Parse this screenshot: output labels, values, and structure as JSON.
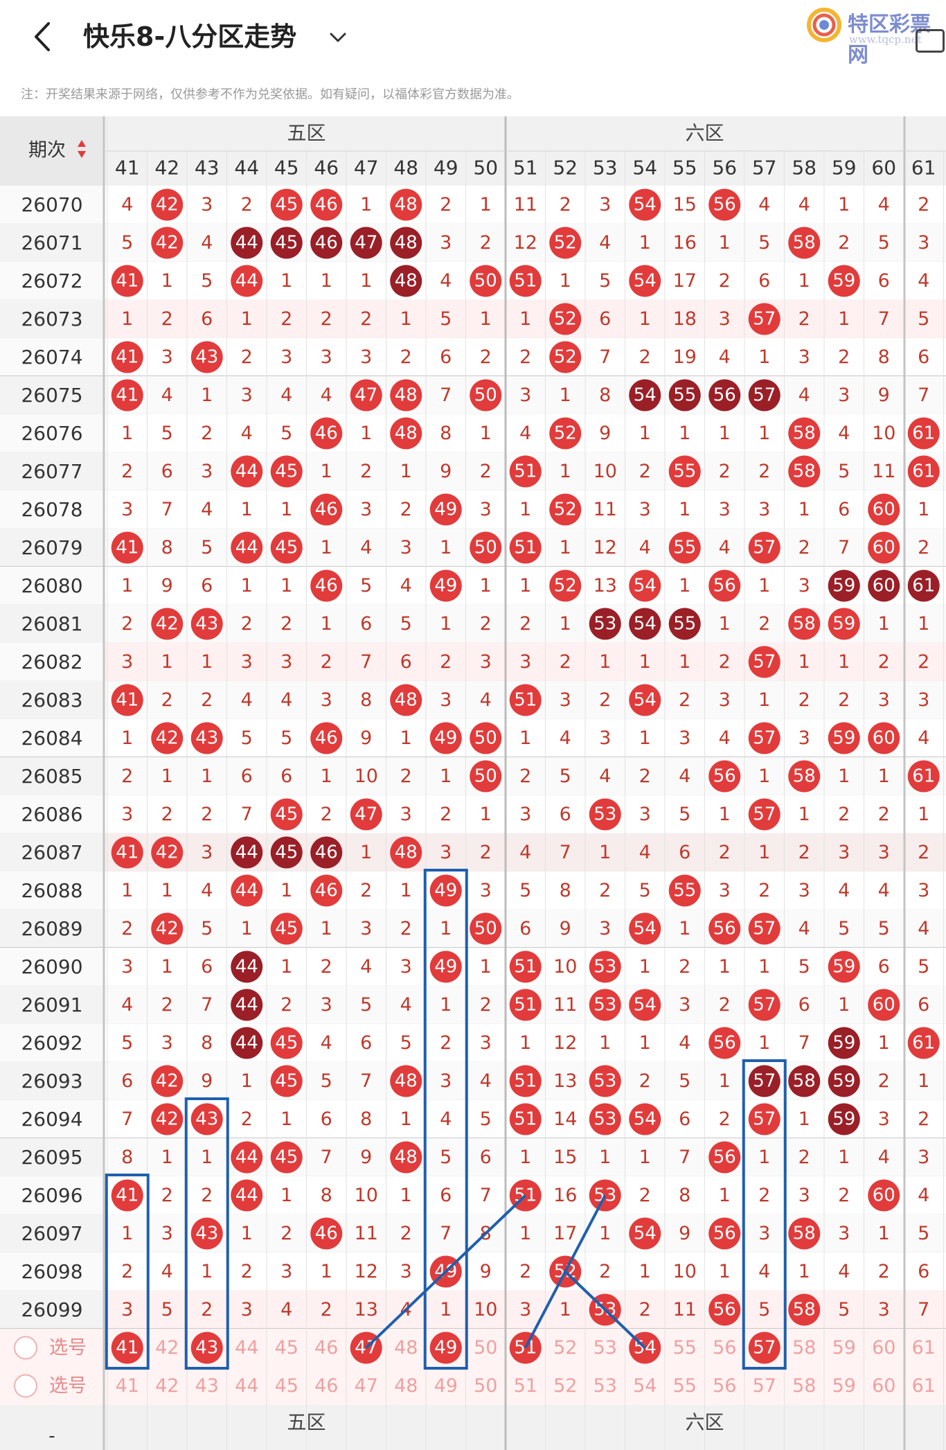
{
  "header": {
    "title": "快乐8-八分区走势",
    "brand": "特区彩票网",
    "brand_url": "www.tqcp.net"
  },
  "note": "注：开奖结果来源于网络，仅供参考不作为兑奖依据。如有疑问，以福体彩官方数据为准。",
  "table": {
    "period_header": "期次",
    "zones": [
      "五区",
      "六区"
    ],
    "columns": [
      41,
      42,
      43,
      44,
      45,
      46,
      47,
      48,
      49,
      50,
      51,
      52,
      53,
      54,
      55,
      56,
      57,
      58,
      59,
      60,
      61
    ],
    "select_label": "选号",
    "rows": [
      {
        "period": "26070",
        "v": [
          4,
          42,
          3,
          2,
          45,
          46,
          1,
          48,
          2,
          1,
          11,
          2,
          3,
          54,
          15,
          56,
          4,
          4,
          1,
          4,
          2
        ]
      },
      {
        "period": "26071",
        "v": [
          5,
          42,
          4,
          44,
          45,
          46,
          47,
          48,
          3,
          2,
          12,
          52,
          4,
          1,
          16,
          1,
          5,
          58,
          2,
          5,
          3
        ]
      },
      {
        "period": "26072",
        "v": [
          41,
          1,
          5,
          44,
          1,
          1,
          1,
          48,
          4,
          50,
          51,
          1,
          5,
          54,
          17,
          2,
          6,
          1,
          59,
          6,
          4
        ]
      },
      {
        "period": "26073",
        "v": [
          1,
          2,
          6,
          1,
          2,
          2,
          2,
          1,
          5,
          1,
          1,
          52,
          6,
          1,
          18,
          3,
          57,
          2,
          1,
          7,
          5
        ]
      },
      {
        "period": "26074",
        "v": [
          41,
          3,
          43,
          2,
          3,
          3,
          3,
          2,
          6,
          2,
          2,
          52,
          7,
          2,
          19,
          4,
          1,
          3,
          2,
          8,
          6
        ]
      },
      {
        "period": "26075",
        "v": [
          41,
          4,
          1,
          3,
          4,
          4,
          47,
          48,
          7,
          50,
          3,
          1,
          8,
          54,
          55,
          56,
          57,
          4,
          3,
          9,
          7
        ]
      },
      {
        "period": "26076",
        "v": [
          1,
          5,
          2,
          4,
          5,
          46,
          1,
          48,
          8,
          1,
          4,
          52,
          9,
          1,
          1,
          1,
          1,
          58,
          4,
          10,
          61
        ]
      },
      {
        "period": "26077",
        "v": [
          2,
          6,
          3,
          44,
          45,
          1,
          2,
          1,
          9,
          2,
          51,
          1,
          10,
          2,
          55,
          2,
          2,
          58,
          5,
          11,
          61
        ]
      },
      {
        "period": "26078",
        "v": [
          3,
          7,
          4,
          1,
          1,
          46,
          3,
          2,
          49,
          3,
          1,
          52,
          11,
          3,
          1,
          3,
          3,
          1,
          6,
          60,
          1
        ]
      },
      {
        "period": "26079",
        "v": [
          41,
          8,
          5,
          44,
          45,
          1,
          4,
          3,
          1,
          50,
          51,
          1,
          12,
          4,
          55,
          4,
          57,
          2,
          7,
          60,
          2
        ]
      },
      {
        "period": "26080",
        "v": [
          1,
          9,
          6,
          1,
          1,
          46,
          5,
          4,
          49,
          1,
          1,
          52,
          13,
          54,
          1,
          56,
          1,
          3,
          59,
          60,
          61
        ]
      },
      {
        "period": "26081",
        "v": [
          2,
          42,
          43,
          2,
          2,
          1,
          6,
          5,
          1,
          2,
          2,
          1,
          53,
          54,
          55,
          1,
          2,
          58,
          59,
          1,
          1
        ]
      },
      {
        "period": "26082",
        "v": [
          3,
          1,
          1,
          3,
          3,
          2,
          7,
          6,
          2,
          3,
          3,
          2,
          1,
          1,
          1,
          2,
          57,
          1,
          1,
          2,
          2
        ]
      },
      {
        "period": "26083",
        "v": [
          41,
          2,
          2,
          4,
          4,
          3,
          8,
          48,
          3,
          4,
          51,
          3,
          2,
          54,
          2,
          3,
          1,
          2,
          2,
          3,
          3
        ]
      },
      {
        "period": "26084",
        "v": [
          1,
          42,
          43,
          5,
          5,
          46,
          9,
          1,
          49,
          50,
          1,
          4,
          3,
          1,
          3,
          4,
          57,
          3,
          59,
          60,
          4
        ]
      },
      {
        "period": "26085",
        "v": [
          2,
          1,
          1,
          6,
          6,
          1,
          10,
          2,
          1,
          50,
          2,
          5,
          4,
          2,
          4,
          56,
          1,
          58,
          1,
          1,
          61
        ]
      },
      {
        "period": "26086",
        "v": [
          3,
          2,
          2,
          7,
          45,
          2,
          47,
          3,
          2,
          1,
          3,
          6,
          53,
          3,
          5,
          1,
          57,
          1,
          2,
          2,
          1
        ]
      },
      {
        "period": "26087",
        "v": [
          41,
          42,
          3,
          44,
          45,
          46,
          1,
          48,
          3,
          2,
          4,
          7,
          1,
          4,
          6,
          2,
          1,
          2,
          3,
          3,
          2
        ]
      },
      {
        "period": "26088",
        "v": [
          1,
          1,
          4,
          44,
          1,
          46,
          2,
          1,
          49,
          3,
          5,
          8,
          2,
          5,
          55,
          3,
          2,
          3,
          4,
          4,
          3
        ]
      },
      {
        "period": "26089",
        "v": [
          2,
          42,
          5,
          1,
          45,
          1,
          3,
          2,
          1,
          50,
          6,
          9,
          3,
          54,
          1,
          56,
          57,
          4,
          5,
          5,
          4
        ]
      },
      {
        "period": "26090",
        "v": [
          3,
          1,
          6,
          44,
          1,
          2,
          4,
          3,
          49,
          1,
          51,
          10,
          53,
          1,
          2,
          1,
          1,
          5,
          59,
          6,
          5
        ]
      },
      {
        "period": "26091",
        "v": [
          4,
          2,
          7,
          44,
          2,
          3,
          5,
          4,
          1,
          2,
          51,
          11,
          53,
          54,
          3,
          2,
          57,
          6,
          1,
          60,
          6
        ]
      },
      {
        "period": "26092",
        "v": [
          5,
          3,
          8,
          44,
          45,
          4,
          6,
          5,
          2,
          3,
          1,
          12,
          1,
          1,
          4,
          56,
          1,
          7,
          59,
          1,
          61
        ]
      },
      {
        "period": "26093",
        "v": [
          6,
          42,
          9,
          1,
          45,
          5,
          7,
          48,
          3,
          4,
          51,
          13,
          53,
          2,
          5,
          1,
          57,
          58,
          59,
          2,
          1
        ]
      },
      {
        "period": "26094",
        "v": [
          7,
          42,
          43,
          2,
          1,
          6,
          8,
          1,
          4,
          5,
          51,
          14,
          53,
          54,
          6,
          2,
          57,
          1,
          59,
          3,
          2
        ]
      },
      {
        "period": "26095",
        "v": [
          8,
          1,
          1,
          44,
          45,
          7,
          9,
          48,
          5,
          6,
          1,
          15,
          1,
          1,
          7,
          56,
          1,
          2,
          1,
          4,
          3
        ]
      },
      {
        "period": "26096",
        "v": [
          41,
          2,
          2,
          44,
          1,
          8,
          10,
          1,
          6,
          7,
          51,
          16,
          53,
          2,
          8,
          1,
          2,
          3,
          2,
          60,
          4
        ]
      },
      {
        "period": "26097",
        "v": [
          1,
          3,
          43,
          1,
          2,
          46,
          11,
          2,
          7,
          8,
          1,
          17,
          1,
          54,
          9,
          56,
          3,
          58,
          3,
          1,
          5
        ]
      },
      {
        "period": "26098",
        "v": [
          2,
          4,
          1,
          2,
          3,
          1,
          12,
          3,
          49,
          9,
          2,
          52,
          2,
          1,
          10,
          1,
          4,
          1,
          4,
          2,
          6
        ]
      },
      {
        "period": "26099",
        "v": [
          3,
          5,
          2,
          3,
          4,
          2,
          13,
          4,
          1,
          10,
          3,
          1,
          53,
          2,
          11,
          56,
          5,
          58,
          5,
          3,
          7
        ]
      }
    ],
    "select_row1_marked": [
      41,
      43,
      47,
      49,
      51,
      54,
      57
    ],
    "dark_cells": [
      [
        26071,
        44
      ],
      [
        26071,
        45
      ],
      [
        26071,
        46
      ],
      [
        26071,
        47
      ],
      [
        26071,
        48
      ],
      [
        26072,
        48
      ],
      [
        26075,
        54
      ],
      [
        26075,
        55
      ],
      [
        26075,
        56
      ],
      [
        26075,
        57
      ],
      [
        26080,
        59
      ],
      [
        26080,
        60
      ],
      [
        26080,
        61
      ],
      [
        26081,
        53
      ],
      [
        26081,
        54
      ],
      [
        26081,
        55
      ],
      [
        26087,
        44
      ],
      [
        26087,
        45
      ],
      [
        26087,
        46
      ],
      [
        26090,
        44
      ],
      [
        26091,
        44
      ],
      [
        26092,
        44
      ],
      [
        26092,
        59
      ],
      [
        26093,
        57
      ],
      [
        26093,
        58
      ],
      [
        26093,
        59
      ],
      [
        26094,
        59
      ]
    ]
  },
  "colors": {
    "ball": "#e23b3b",
    "ball_dark": "#9a1f27",
    "miss_text": "#c0392b",
    "annotation": "#1f5fae"
  }
}
